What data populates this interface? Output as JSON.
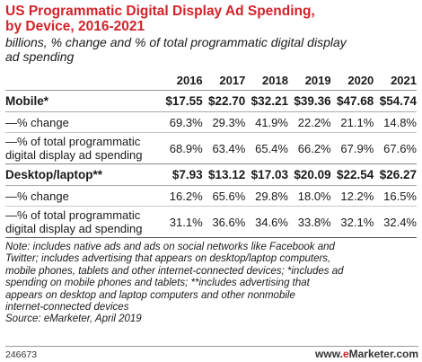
{
  "title_line1": "US Programmatic Digital Display Ad Spending,",
  "title_line2": "by Device, 2016-2021",
  "subtitle_line1": "billions, % change and % of total programmatic digital display",
  "subtitle_line2": "ad spending",
  "chart_data": {
    "type": "table",
    "columns": [
      "2016",
      "2017",
      "2018",
      "2019",
      "2020",
      "2021"
    ],
    "rows": [
      {
        "label": "Mobile*",
        "values": [
          "$17.55",
          "$22.70",
          "$32.21",
          "$39.36",
          "$47.68",
          "$54.74"
        ]
      },
      {
        "label": "—% change",
        "values": [
          "69.3%",
          "29.3%",
          "41.9%",
          "22.2%",
          "21.1%",
          "14.8%"
        ]
      },
      {
        "label_line1": "—% of total programmatic",
        "label_line2": "digital display ad spending",
        "values": [
          "68.9%",
          "63.4%",
          "65.4%",
          "66.2%",
          "67.9%",
          "67.6%"
        ]
      },
      {
        "label": "Desktop/laptop**",
        "values": [
          "$7.93",
          "$13.12",
          "$17.03",
          "$20.09",
          "$22.54",
          "$26.27"
        ]
      },
      {
        "label": "—% change",
        "values": [
          "16.2%",
          "65.6%",
          "29.8%",
          "18.0%",
          "12.2%",
          "16.5%"
        ]
      },
      {
        "label_line1": "—% of total programmatic",
        "label_line2": "digital display ad spending",
        "values": [
          "31.1%",
          "36.6%",
          "34.6%",
          "33.8%",
          "32.1%",
          "32.4%"
        ]
      }
    ]
  },
  "note_lines": [
    "Note: includes native ads and ads on social networks like Facebook and",
    "Twitter; includes advertising that appears on desktop/laptop computers,",
    "mobile phones, tablets and other internet-connected devices; *includes ad",
    "spending on mobile phones and tablets; **includes advertising that",
    "appears on desktop and laptop computers and other nonmobile",
    "internet-connected devices"
  ],
  "source": "Source: eMarketer, April 2019",
  "footer_id": "246673",
  "brand_prefix": "www.",
  "brand_e": "e",
  "brand_rest": "Marketer.com",
  "colors": {
    "title": "#d2232a",
    "brand_accent": "#d2232a"
  }
}
